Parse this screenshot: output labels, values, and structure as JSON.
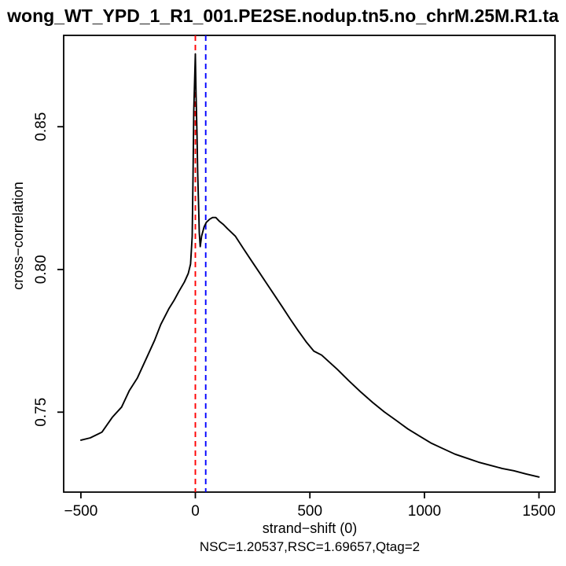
{
  "title": "wong_WT_YPD_1_R1_001.PE2SE.nodup.tn5.no_chrM.25M.R1.ta",
  "chart_data": {
    "type": "line",
    "title": "wong_WT_YPD_1_R1_001.PE2SE.nodup.tn5.no_chrM.25M.R1.ta",
    "xlabel": "strand−shift (0)",
    "ylabel": "cross−correlation",
    "subtitle": "NSC=1.20537,RSC=1.69657,Qtag=2",
    "grid": false,
    "legend_position": "none",
    "xlim": [
      -575,
      1570
    ],
    "ylim": [
      0.722,
      0.882
    ],
    "x_ticks": [
      {
        "v": -500,
        "label": "−500"
      },
      {
        "v": 0,
        "label": "0"
      },
      {
        "v": 500,
        "label": "500"
      },
      {
        "v": 1000,
        "label": "1000"
      },
      {
        "v": 1500,
        "label": "1500"
      }
    ],
    "y_ticks": [
      {
        "v": 0.75,
        "label": "0.75"
      },
      {
        "v": 0.8,
        "label": "0.80"
      },
      {
        "v": 0.85,
        "label": "0.85"
      }
    ],
    "vlines": [
      {
        "x": 0,
        "color": "#ff0000",
        "style": "dashed",
        "name": "peak-strand-shift-line"
      },
      {
        "x": 45,
        "color": "#0000ff",
        "style": "dashed",
        "name": "phantom-peak-line"
      }
    ],
    "stats": {
      "NSC": "1.20537",
      "RSC": "1.69657",
      "Qtag": "2"
    },
    "series": [
      {
        "name": "cross-correlation",
        "color": "#000000",
        "points": [
          [
            -500,
            0.7402
          ],
          [
            -459,
            0.741
          ],
          [
            -408,
            0.743
          ],
          [
            -363,
            0.7482
          ],
          [
            -322,
            0.7518
          ],
          [
            -288,
            0.7576
          ],
          [
            -253,
            0.762
          ],
          [
            -209,
            0.7697
          ],
          [
            -178,
            0.7752
          ],
          [
            -151,
            0.7807
          ],
          [
            -116,
            0.7862
          ],
          [
            -92,
            0.7893
          ],
          [
            -72,
            0.7923
          ],
          [
            -48,
            0.7956
          ],
          [
            -31,
            0.7986
          ],
          [
            -21,
            0.8019
          ],
          [
            -14,
            0.8116
          ],
          [
            -10,
            0.8336
          ],
          [
            -7,
            0.8556
          ],
          [
            0,
            0.8755
          ],
          [
            3,
            0.8612
          ],
          [
            7,
            0.8474
          ],
          [
            10,
            0.8336
          ],
          [
            14,
            0.8226
          ],
          [
            17,
            0.8129
          ],
          [
            21,
            0.808
          ],
          [
            27,
            0.8116
          ],
          [
            38,
            0.8149
          ],
          [
            48,
            0.8165
          ],
          [
            62,
            0.8176
          ],
          [
            75,
            0.8182
          ],
          [
            89,
            0.8182
          ],
          [
            106,
            0.8168
          ],
          [
            123,
            0.8157
          ],
          [
            140,
            0.8143
          ],
          [
            175,
            0.8116
          ],
          [
            209,
            0.8074
          ],
          [
            243,
            0.8033
          ],
          [
            277,
            0.7992
          ],
          [
            312,
            0.795
          ],
          [
            346,
            0.7909
          ],
          [
            380,
            0.7868
          ],
          [
            414,
            0.7826
          ],
          [
            449,
            0.7785
          ],
          [
            483,
            0.7747
          ],
          [
            517,
            0.7714
          ],
          [
            551,
            0.77
          ],
          [
            620,
            0.765
          ],
          [
            671,
            0.7609
          ],
          [
            723,
            0.757
          ],
          [
            774,
            0.7534
          ],
          [
            825,
            0.7501
          ],
          [
            877,
            0.7471
          ],
          [
            928,
            0.7441
          ],
          [
            979,
            0.7416
          ],
          [
            1031,
            0.7391
          ],
          [
            1082,
            0.7372
          ],
          [
            1133,
            0.7353
          ],
          [
            1185,
            0.7339
          ],
          [
            1236,
            0.7325
          ],
          [
            1288,
            0.7314
          ],
          [
            1339,
            0.7303
          ],
          [
            1390,
            0.7295
          ],
          [
            1442,
            0.7284
          ],
          [
            1500,
            0.7273
          ]
        ]
      }
    ]
  }
}
